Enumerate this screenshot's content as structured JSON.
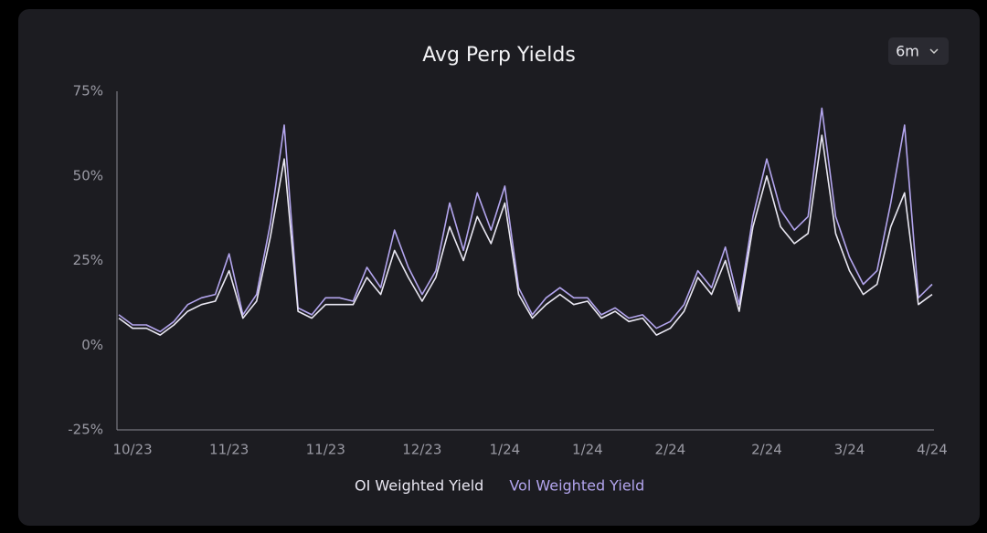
{
  "chart_data": {
    "type": "line",
    "title": "Avg Perp Yields",
    "range_selector": "6m",
    "categories": [
      null,
      "10/23",
      null,
      null,
      null,
      null,
      null,
      null,
      "11/23",
      null,
      null,
      null,
      null,
      null,
      null,
      "11/23",
      null,
      null,
      null,
      null,
      null,
      null,
      "12/23",
      null,
      null,
      null,
      null,
      null,
      "1/24",
      null,
      null,
      null,
      null,
      null,
      "1/24",
      null,
      null,
      null,
      null,
      null,
      "2/24",
      null,
      null,
      null,
      null,
      null,
      null,
      "2/24",
      null,
      null,
      null,
      null,
      null,
      "3/24",
      null,
      null,
      null,
      null,
      null,
      "4/24"
    ],
    "series": [
      {
        "name": "OI Weighted Yield",
        "color": "#e9e7f2",
        "values": [
          8,
          5,
          5,
          3,
          6,
          10,
          12,
          13,
          22,
          8,
          13,
          32,
          55,
          10,
          8,
          12,
          12,
          12,
          20,
          15,
          28,
          20,
          13,
          20,
          35,
          25,
          38,
          30,
          42,
          15,
          8,
          12,
          15,
          12,
          13,
          8,
          10,
          7,
          8,
          3,
          5,
          10,
          20,
          15,
          25,
          10,
          35,
          50,
          35,
          30,
          33,
          62,
          33,
          22,
          15,
          18,
          35,
          45,
          12,
          15
        ]
      },
      {
        "name": "Vol Weighted Yield",
        "color": "#b3a5ee",
        "values": [
          9,
          6,
          6,
          4,
          7,
          12,
          14,
          15,
          27,
          9,
          15,
          36,
          65,
          11,
          9,
          14,
          14,
          13,
          23,
          17,
          34,
          23,
          15,
          22,
          42,
          28,
          45,
          34,
          47,
          17,
          9,
          14,
          17,
          14,
          14,
          9,
          11,
          8,
          9,
          5,
          7,
          12,
          22,
          17,
          29,
          12,
          38,
          55,
          40,
          34,
          38,
          70,
          38,
          26,
          18,
          22,
          42,
          65,
          14,
          18
        ]
      }
    ],
    "ylim": [
      -25,
      75
    ],
    "yticks": [
      {
        "value": -25,
        "label": "-25%"
      },
      {
        "value": 0,
        "label": "0%"
      },
      {
        "value": 25,
        "label": "25%"
      },
      {
        "value": 50,
        "label": "50%"
      },
      {
        "value": 75,
        "label": "75%"
      }
    ],
    "grid": false
  }
}
